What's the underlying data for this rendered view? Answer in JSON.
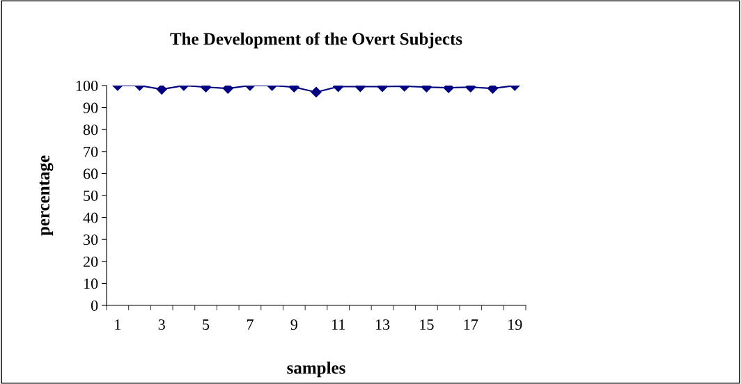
{
  "chart_data": {
    "type": "line",
    "title": "The Development of the Overt Subjects",
    "xlabel": "samples",
    "ylabel": "percentage",
    "categories": [
      "1",
      null,
      "3",
      null,
      "5",
      null,
      "7",
      null,
      "9",
      null,
      "11",
      null,
      "13",
      null,
      "15",
      null,
      "17",
      null,
      "19"
    ],
    "series": [
      {
        "color": "#000080",
        "values": [
          100,
          100,
          98.3,
          100,
          99.3,
          98.7,
          100,
          100,
          99.3,
          97,
          99.5,
          99.5,
          99.5,
          99.7,
          99.3,
          99,
          99.3,
          98.7,
          100
        ]
      }
    ],
    "ylim": [
      0,
      100
    ],
    "yticks": [
      0,
      10,
      20,
      30,
      40,
      50,
      60,
      70,
      80,
      90,
      100
    ],
    "marker": "diamond",
    "line_style": "solid",
    "grid": false,
    "legend": false
  }
}
